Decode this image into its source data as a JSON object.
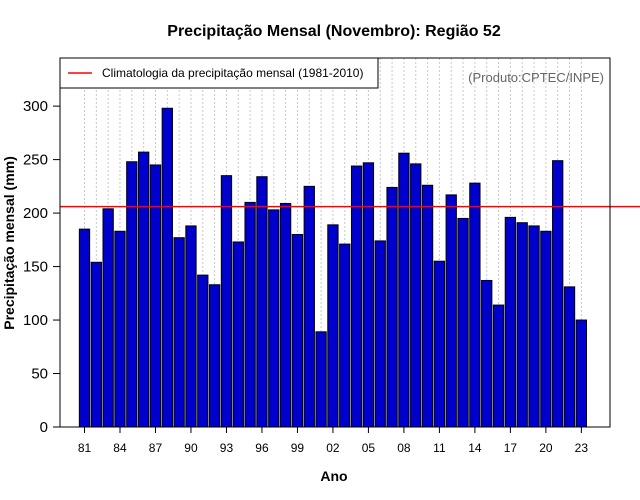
{
  "chart_data": {
    "type": "bar",
    "title": "Precipitação Mensal (Novembro): Região 52",
    "xlabel": "Ano",
    "ylabel": "Precipitação mensal (mm)",
    "source": "(Produto:CPTEC/INPE)",
    "ylim": [
      0,
      345
    ],
    "yticks": [
      0,
      50,
      100,
      150,
      200,
      250,
      300
    ],
    "grid": "vertical dashed",
    "bar_color": "#0000cc",
    "reference_line_color": "#ff0000",
    "categories": [
      "1981",
      "1982",
      "1983",
      "1984",
      "1985",
      "1986",
      "1987",
      "1988",
      "1989",
      "1990",
      "1991",
      "1992",
      "1993",
      "1994",
      "1995",
      "1996",
      "1997",
      "1998",
      "1999",
      "2000",
      "2001",
      "2002",
      "2003",
      "2004",
      "2005",
      "2006",
      "2007",
      "2008",
      "2009",
      "2010",
      "2011",
      "2012",
      "2013",
      "2014",
      "2015",
      "2016",
      "2017",
      "2018",
      "2019",
      "2020",
      "2021",
      "2022",
      "2023"
    ],
    "xtick_labels": [
      "81",
      "84",
      "87",
      "90",
      "93",
      "96",
      "99",
      "02",
      "05",
      "08",
      "11",
      "14",
      "17",
      "20",
      "23"
    ],
    "xtick_positions": [
      0,
      3,
      6,
      9,
      12,
      15,
      18,
      21,
      24,
      27,
      30,
      33,
      36,
      39,
      42
    ],
    "values": [
      185,
      154,
      204,
      183,
      248,
      257,
      245,
      298,
      177,
      188,
      142,
      133,
      235,
      173,
      210,
      234,
      203,
      209,
      180,
      225,
      89,
      189,
      171,
      244,
      247,
      174,
      224,
      256,
      246,
      226,
      155,
      217,
      195,
      228,
      137,
      114,
      196,
      191,
      188,
      183,
      249,
      131,
      100
    ],
    "reference_line": {
      "label": "Climatologia da precipitação mensal (1981-2010)",
      "value": 206
    },
    "legend_position": "top-left"
  }
}
